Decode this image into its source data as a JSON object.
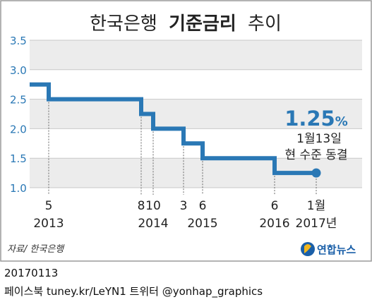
{
  "title": {
    "normal": "한국은행",
    "bold": "기준금리",
    "suffix": "추이"
  },
  "source": "자료/ 한국은행",
  "logo_text": "연합뉴스",
  "footer": {
    "date": "20170113",
    "social": "페이스북 tuney.kr/LeYN1 트위터 @yonhap_graphics"
  },
  "colors": {
    "line": "#2a78b5",
    "band": "#ececec",
    "grid": "#c8c8c8",
    "callout": "#2a78b5"
  },
  "chart_data": {
    "type": "line",
    "step": true,
    "title": "한국은행 기준금리 추이",
    "ylim": [
      1.0,
      3.5
    ],
    "yticks": [
      "3.5",
      "3.0",
      "2.5",
      "2.0",
      "1.5",
      "1.0"
    ],
    "series": [
      {
        "values": [
          {
            "x": 0,
            "y": 2.75
          },
          {
            "x": 1,
            "y": 2.5
          },
          {
            "x": 6,
            "y": 2.25
          },
          {
            "x": 7,
            "y": 2.0
          },
          {
            "x": 10,
            "y": 1.75
          },
          {
            "x": 11,
            "y": 1.5
          },
          {
            "x": 16,
            "y": 1.25
          },
          {
            "x": 18,
            "y": 1.25
          }
        ]
      }
    ],
    "x_markers": [
      {
        "x": 1,
        "month": "5",
        "year": "2013"
      },
      {
        "x": 6,
        "month": "8",
        "year": ""
      },
      {
        "x": 7,
        "month": "10",
        "year": "2014"
      },
      {
        "x": 10,
        "month": "3",
        "year": ""
      },
      {
        "x": 11,
        "month": "6",
        "year": "2015"
      },
      {
        "x": 16,
        "month": "6",
        "year": "2016"
      },
      {
        "x": 18,
        "month": "1월",
        "year": "2017년"
      }
    ],
    "annotation": {
      "value": "1.25",
      "unit": "%",
      "line1": "1월13일",
      "line2": "현 수준 동결"
    }
  }
}
